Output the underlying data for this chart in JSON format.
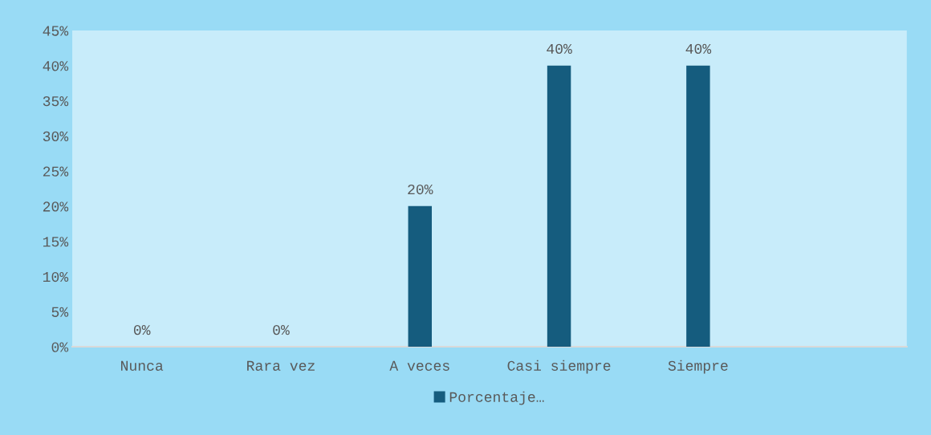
{
  "chart_data": {
    "type": "bar",
    "categories": [
      "Nunca",
      "Rara vez",
      "A veces",
      "Casi siempre",
      "Siempre",
      null
    ],
    "series": [
      {
        "name": "Porcentaje…",
        "color": "#155c7e",
        "values": [
          0,
          0,
          20,
          40,
          40,
          null
        ],
        "value_labels": [
          "0%",
          "0%",
          "20%",
          "40%",
          "40%",
          null
        ]
      }
    ],
    "ylim": [
      0,
      45
    ],
    "yticks": [
      {
        "value": 0,
        "label": "0%"
      },
      {
        "value": 5,
        "label": "5%"
      },
      {
        "value": 10,
        "label": "10%"
      },
      {
        "value": 15,
        "label": "15%"
      },
      {
        "value": 20,
        "label": "20%"
      },
      {
        "value": 25,
        "label": "25%"
      },
      {
        "value": 30,
        "label": "30%"
      },
      {
        "value": 35,
        "label": "35%"
      },
      {
        "value": 40,
        "label": "40%"
      },
      {
        "value": 45,
        "label": "45%"
      }
    ],
    "grid": false,
    "legend": "bottom"
  }
}
